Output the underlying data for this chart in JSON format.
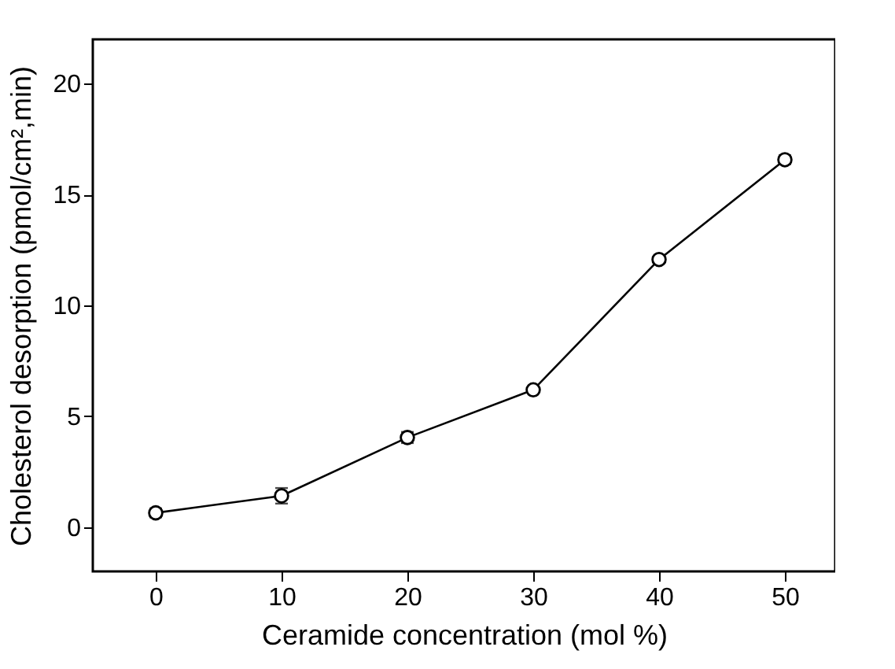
{
  "chart_data": {
    "type": "line",
    "xlabel": "Ceramide concentration (mol %)",
    "ylabel": "Cholesterol desorption (pmol/cm²,min)",
    "x": [
      0,
      10,
      20,
      30,
      40,
      50
    ],
    "series": [
      {
        "color": "#000000",
        "values": [
          0.64,
          1.41,
          4.04,
          6.19,
          12.07,
          16.57
        ],
        "errors": [
          0.2,
          0.35,
          0.25,
          0.15,
          0.1,
          0.2
        ]
      }
    ],
    "xlim": [
      -5,
      54
    ],
    "xticks": [
      0,
      10,
      20,
      30,
      40,
      50
    ],
    "ylim": [
      -2,
      22
    ],
    "yticks": [
      0,
      5,
      10,
      15,
      20
    ],
    "marker": "circle",
    "line_style": "solid",
    "grid": false
  }
}
